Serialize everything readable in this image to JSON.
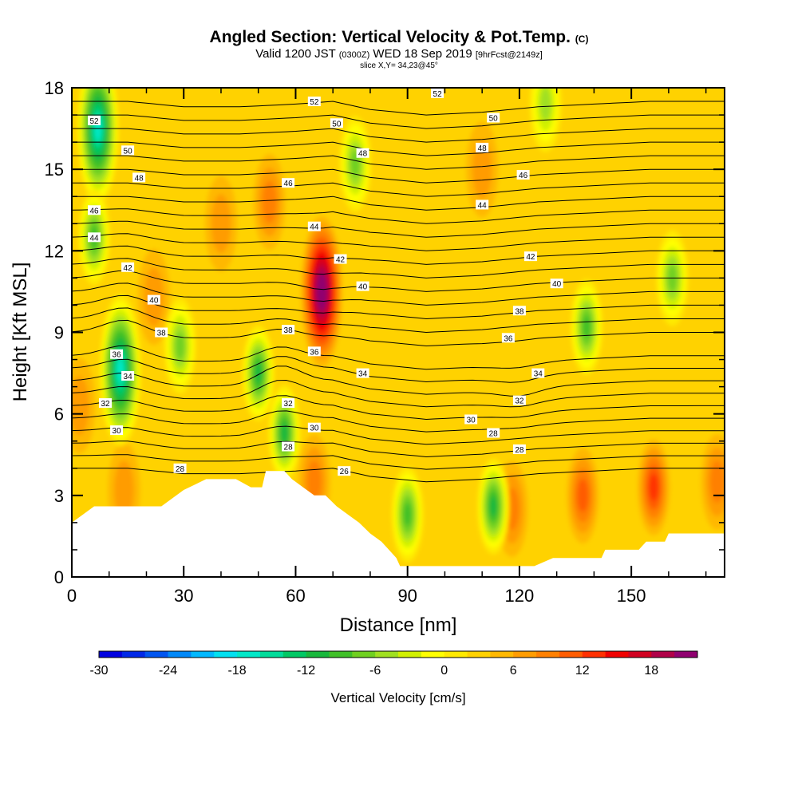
{
  "header": {
    "title_main": "Angled Section: Vertical Velocity & Pot.Temp.",
    "title_unit": "(C)",
    "subtitle_a": "Valid 1200 JST",
    "subtitle_b": "(0300Z)",
    "subtitle_c": "WED 18 Sep 2019",
    "subtitle_d": "[9hrFcst@2149z]",
    "slice": "slice X,Y= 34,23@45°"
  },
  "chart_data": {
    "type": "heatmap",
    "xlabel": "Distance [nm]",
    "ylabel": "Height [Kft MSL]",
    "xlim": [
      0,
      175
    ],
    "ylim": [
      0,
      18
    ],
    "x_ticks": [
      0,
      30,
      60,
      90,
      120,
      150
    ],
    "y_ticks": [
      0,
      3,
      6,
      9,
      12,
      15,
      18
    ],
    "colorbar": {
      "title": "Vertical Velocity [cm/s]",
      "min": -30,
      "max": 22,
      "step": 2,
      "tick_values": [
        -30,
        -24,
        -18,
        -12,
        -6,
        0,
        6,
        12,
        18
      ],
      "tick_labels": [
        "-30",
        "-24",
        "-18",
        "-12",
        "-6",
        "0",
        "6",
        "12",
        "18"
      ],
      "colors": [
        "#0000e0",
        "#0028e8",
        "#0055f0",
        "#0088f8",
        "#00b8ff",
        "#00e0f0",
        "#00e8c8",
        "#00dc9a",
        "#00c864",
        "#18b83c",
        "#40c028",
        "#70d020",
        "#a0e020",
        "#d0f000",
        "#ffff00",
        "#ffea00",
        "#ffd200",
        "#ffb800",
        "#ff9c00",
        "#ff8000",
        "#ff5c00",
        "#ff3000",
        "#f00000",
        "#d00020",
        "#b00048",
        "#900070"
      ]
    },
    "background_w": 2,
    "updrafts": [
      {
        "x": 67,
        "y": 10.5,
        "w": 22,
        "note": "peak updraft"
      },
      {
        "x": 53,
        "y": 13.8,
        "w": 8
      },
      {
        "x": 22,
        "y": 10.3,
        "w": 6
      },
      {
        "x": 110,
        "y": 15.0,
        "w": 6
      },
      {
        "x": 137,
        "y": 3.0,
        "w": 10
      },
      {
        "x": 156,
        "y": 3.3,
        "w": 11
      },
      {
        "x": 118,
        "y": 2.5,
        "w": 8
      },
      {
        "x": 65,
        "y": 3.5,
        "w": 8
      },
      {
        "x": 173,
        "y": 3.5,
        "w": 7
      },
      {
        "x": 14,
        "y": 3.2,
        "w": 5
      },
      {
        "x": 40,
        "y": 13.0,
        "w": 5
      },
      {
        "x": 2,
        "y": 6.3,
        "w": 6
      }
    ],
    "downdrafts": [
      {
        "x": 7,
        "y": 16.5,
        "w": -18
      },
      {
        "x": 6,
        "y": 12.5,
        "w": -10
      },
      {
        "x": 13,
        "y": 7.6,
        "w": -18
      },
      {
        "x": 50,
        "y": 7.5,
        "w": -12
      },
      {
        "x": 57,
        "y": 5.3,
        "w": -12
      },
      {
        "x": 90,
        "y": 2.3,
        "w": -10
      },
      {
        "x": 113,
        "y": 2.6,
        "w": -12
      },
      {
        "x": 138,
        "y": 9.2,
        "w": -10
      },
      {
        "x": 161,
        "y": 11.0,
        "w": -8
      },
      {
        "x": 76,
        "y": 15.2,
        "w": -8
      },
      {
        "x": 29,
        "y": 8.5,
        "w": -8
      },
      {
        "x": 127,
        "y": 17.4,
        "w": -6
      }
    ],
    "theta_levels": [
      26,
      27,
      28,
      29,
      30,
      31,
      32,
      33,
      34,
      35,
      36,
      37,
      38,
      39,
      40,
      41,
      42,
      43,
      44,
      45,
      46,
      47,
      48,
      49,
      50,
      51,
      52,
      53
    ],
    "theta_profiles": {
      "x": [
        0,
        15,
        30,
        45,
        60,
        70,
        80,
        95,
        110,
        125,
        140,
        155,
        175
      ],
      "z26": [
        4.0,
        4.0,
        3.8,
        3.8,
        3.9,
        4.0,
        3.7,
        3.5,
        3.6,
        3.8,
        3.9,
        4.0,
        4.0
      ],
      "dz_low": 0.46,
      "dz_high": 0.5,
      "bumps": [
        {
          "x": 14,
          "z0": 4,
          "z1": 14,
          "amp": 0.45
        },
        {
          "x": 56,
          "z0": 4,
          "z1": 10,
          "amp": 0.7
        },
        {
          "x": 68,
          "z0": 8,
          "z1": 14,
          "amp": -0.4
        },
        {
          "x": 120,
          "z0": 5,
          "z1": 9,
          "amp": -0.3
        }
      ]
    },
    "contour_labels": [
      {
        "text": "52",
        "x": 6,
        "y": 16.8
      },
      {
        "text": "50",
        "x": 15,
        "y": 15.7
      },
      {
        "text": "48",
        "x": 18,
        "y": 14.7
      },
      {
        "text": "46",
        "x": 6,
        "y": 13.5
      },
      {
        "text": "44",
        "x": 6,
        "y": 12.5
      },
      {
        "text": "42",
        "x": 15,
        "y": 11.4
      },
      {
        "text": "40",
        "x": 22,
        "y": 10.2
      },
      {
        "text": "38",
        "x": 24,
        "y": 9.0
      },
      {
        "text": "36",
        "x": 12,
        "y": 8.2
      },
      {
        "text": "34",
        "x": 15,
        "y": 7.4
      },
      {
        "text": "32",
        "x": 9,
        "y": 6.4
      },
      {
        "text": "30",
        "x": 12,
        "y": 5.4
      },
      {
        "text": "28",
        "x": 29,
        "y": 4.0
      },
      {
        "text": "52",
        "x": 65,
        "y": 17.5
      },
      {
        "text": "50",
        "x": 71,
        "y": 16.7
      },
      {
        "text": "48",
        "x": 78,
        "y": 15.6
      },
      {
        "text": "46",
        "x": 58,
        "y": 14.5
      },
      {
        "text": "44",
        "x": 65,
        "y": 12.9
      },
      {
        "text": "42",
        "x": 72,
        "y": 11.7
      },
      {
        "text": "40",
        "x": 78,
        "y": 10.7
      },
      {
        "text": "38",
        "x": 58,
        "y": 9.1
      },
      {
        "text": "36",
        "x": 65,
        "y": 8.3
      },
      {
        "text": "34",
        "x": 78,
        "y": 7.5
      },
      {
        "text": "32",
        "x": 58,
        "y": 6.4
      },
      {
        "text": "30",
        "x": 65,
        "y": 5.5
      },
      {
        "text": "28",
        "x": 58,
        "y": 4.8
      },
      {
        "text": "26",
        "x": 73,
        "y": 3.9
      },
      {
        "text": "52",
        "x": 98,
        "y": 17.8
      },
      {
        "text": "50",
        "x": 113,
        "y": 16.9
      },
      {
        "text": "48",
        "x": 110,
        "y": 15.8
      },
      {
        "text": "46",
        "x": 121,
        "y": 14.8
      },
      {
        "text": "44",
        "x": 110,
        "y": 13.7
      },
      {
        "text": "42",
        "x": 123,
        "y": 11.8
      },
      {
        "text": "40",
        "x": 130,
        "y": 10.8
      },
      {
        "text": "38",
        "x": 120,
        "y": 9.8
      },
      {
        "text": "36",
        "x": 117,
        "y": 8.8
      },
      {
        "text": "34",
        "x": 125,
        "y": 7.5
      },
      {
        "text": "32",
        "x": 120,
        "y": 6.5
      },
      {
        "text": "30",
        "x": 107,
        "y": 5.8
      },
      {
        "text": "28",
        "x": 113,
        "y": 5.3
      },
      {
        "text": "28",
        "x": 120,
        "y": 4.7
      }
    ],
    "terrain": [
      [
        0,
        2.0
      ],
      [
        3,
        2.3
      ],
      [
        6,
        2.6
      ],
      [
        12,
        2.6
      ],
      [
        24,
        2.6
      ],
      [
        27,
        2.9
      ],
      [
        30,
        3.2
      ],
      [
        33,
        3.4
      ],
      [
        36,
        3.6
      ],
      [
        44,
        3.6
      ],
      [
        48,
        3.3
      ],
      [
        51,
        3.3
      ],
      [
        52,
        3.9
      ],
      [
        57,
        3.9
      ],
      [
        59,
        3.6
      ],
      [
        62,
        3.3
      ],
      [
        65,
        3.0
      ],
      [
        68,
        3.0
      ],
      [
        71,
        2.6
      ],
      [
        74,
        2.3
      ],
      [
        77,
        2.0
      ],
      [
        80,
        1.6
      ],
      [
        83,
        1.3
      ],
      [
        85,
        1.0
      ],
      [
        87,
        0.7
      ],
      [
        88,
        0.4
      ],
      [
        96,
        0.4
      ],
      [
        120,
        0.4
      ],
      [
        124,
        0.4
      ],
      [
        129,
        0.7
      ],
      [
        142,
        0.7
      ],
      [
        143,
        1.0
      ],
      [
        152,
        1.0
      ],
      [
        154,
        1.3
      ],
      [
        159,
        1.3
      ],
      [
        160,
        1.6
      ],
      [
        175,
        1.6
      ]
    ]
  }
}
